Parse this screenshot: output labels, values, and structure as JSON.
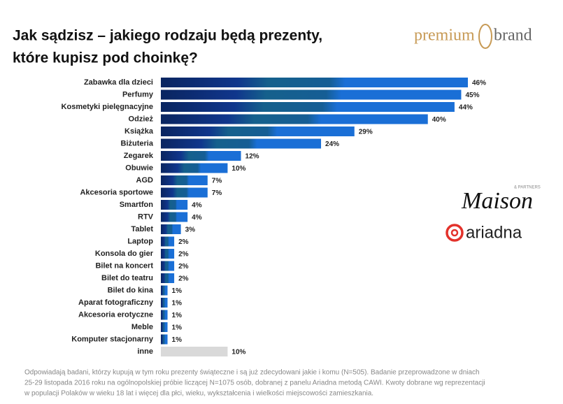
{
  "chart_data": {
    "type": "bar",
    "orientation": "horizontal",
    "title": [
      "Jak sądzisz – jakiego rodzaju będą prezenty,",
      "które kupisz pod choinkę?"
    ],
    "categories": [
      "Zabawka dla dzieci",
      "Perfumy",
      "Kosmetyki pielęgnacyjne",
      "Odzież",
      "Książka",
      "Biżuteria",
      "Zegarek",
      "Obuwie",
      "AGD",
      "Akcesoria sportowe",
      "Smartfon",
      "RTV",
      "Tablet",
      "Laptop",
      "Konsola do gier",
      "Bilet na koncert",
      "Bilet do teatru",
      "Bilet do kina",
      "Aparat fotograficzny",
      "Akcesoria erotyczne",
      "Meble",
      "Komputer stacjonarny",
      "inne"
    ],
    "values": [
      46,
      45,
      44,
      40,
      29,
      24,
      12,
      10,
      7,
      7,
      4,
      4,
      3,
      2,
      2,
      2,
      2,
      1,
      1,
      1,
      1,
      1,
      10
    ],
    "value_labels": [
      "46%",
      "45%",
      "44%",
      "40%",
      "29%",
      "24%",
      "12%",
      "10%",
      "7%",
      "7%",
      "4%",
      "4%",
      "3%",
      "2%",
      "2%",
      "2%",
      "2%",
      "1%",
      "1%",
      "1%",
      "1%",
      "1%",
      "10%"
    ],
    "colors": [
      "#1a6fd6",
      "#1a6fd6",
      "#1a6fd6",
      "#1a6fd6",
      "#1a6fd6",
      "#1a6fd6",
      "#1a6fd6",
      "#1a6fd6",
      "#1a6fd6",
      "#1a6fd6",
      "#1a6fd6",
      "#1a6fd6",
      "#1a6fd6",
      "#1a6fd6",
      "#1a6fd6",
      "#1a6fd6",
      "#1a6fd6",
      "#1a6fd6",
      "#1a6fd6",
      "#1a6fd6",
      "#1a6fd6",
      "#1a6fd6",
      "#d9d9d9"
    ],
    "footnote": [
      "Odpowiadają badani, którzy kupują w tym roku prezenty świąteczne i są już zdecydowani jakie i komu (N=505). Badanie przeprowadzone w dniach",
      "25-29 listopada 2016 roku na ogólnopolskiej próbie liczącej N=1075 osób, dobranej z panelu Ariadna metodą CAWI. Kwoty dobrane wg reprezentacji",
      "w populacji Polaków w wieku 18 lat i więcej dla płci, wieku, wykształcenia i wielkości miejscowości zamieszkania."
    ],
    "logos": {
      "premium": "premium",
      "brand": "brand",
      "maison": "Maison",
      "partners": "& PARTNERS",
      "ariadna": "ariadna"
    }
  }
}
